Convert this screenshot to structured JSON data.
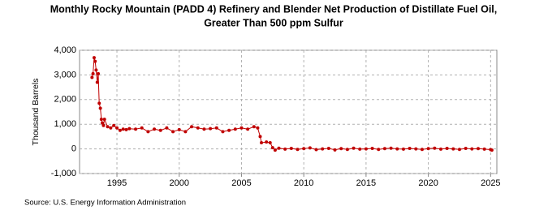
{
  "chart_data": {
    "type": "line",
    "title": [
      "Monthly Rocky Mountain (PADD 4) Refinery and Blender Net Production of Distillate Fuel Oil,",
      "Greater Than 500 ppm Sulfur"
    ],
    "ylabel": "Thousand Barrels",
    "source": "Source: U.S. Energy Information Administration",
    "x": [
      1993.0,
      1993.08,
      1993.17,
      1993.25,
      1993.33,
      1993.42,
      1993.5,
      1993.58,
      1993.67,
      1993.75,
      1993.83,
      1993.92,
      1994.0,
      1994.25,
      1994.5,
      1994.75,
      1995.0,
      1995.25,
      1995.5,
      1995.75,
      1996.0,
      1996.5,
      1997.0,
      1997.5,
      1998.0,
      1998.5,
      1999.0,
      1999.5,
      2000.0,
      2000.5,
      2001.0,
      2001.5,
      2002.0,
      2002.5,
      2003.0,
      2003.5,
      2004.0,
      2004.5,
      2005.0,
      2005.5,
      2006.0,
      2006.3,
      2006.5,
      2006.6,
      2007.0,
      2007.3,
      2007.5,
      2007.7,
      2008.0,
      2008.5,
      2009.0,
      2009.5,
      2010.0,
      2010.5,
      2011.0,
      2011.5,
      2012.0,
      2012.5,
      2013.0,
      2013.5,
      2014.0,
      2014.5,
      2015.0,
      2015.5,
      2016.0,
      2016.5,
      2017.0,
      2017.5,
      2018.0,
      2018.5,
      2019.0,
      2019.5,
      2020.0,
      2020.5,
      2021.0,
      2021.5,
      2022.0,
      2022.5,
      2023.0,
      2023.5,
      2024.0,
      2024.5,
      2025.0,
      2025.1
    ],
    "series": [
      {
        "name": "Net Production",
        "color": "#c00000",
        "values": [
          2900,
          3050,
          3700,
          3550,
          3200,
          2700,
          3050,
          1850,
          1650,
          1200,
          1050,
          950,
          1200,
          900,
          850,
          950,
          850,
          750,
          800,
          780,
          820,
          800,
          850,
          700,
          800,
          750,
          850,
          700,
          780,
          700,
          900,
          850,
          800,
          820,
          850,
          700,
          750,
          800,
          850,
          800,
          900,
          850,
          500,
          250,
          280,
          250,
          50,
          -50,
          30,
          -10,
          20,
          -20,
          10,
          40,
          -30,
          0,
          20,
          -40,
          10,
          -20,
          30,
          -10,
          0,
          20,
          -20,
          10,
          30,
          0,
          -10,
          20,
          0,
          -20,
          10,
          30,
          -10,
          20,
          0,
          -20,
          20,
          0,
          10,
          -10,
          -30,
          -50
        ]
      }
    ],
    "xlim": [
      1992,
      2025.5
    ],
    "xticks": [
      1995,
      2000,
      2005,
      2010,
      2015,
      2020,
      2025
    ],
    "ylim": [
      -1000,
      4000
    ],
    "yticks": [
      {
        "value": -1000,
        "label": "-1,000"
      },
      0,
      {
        "value": 1000,
        "label": "1,000"
      },
      {
        "value": 2000,
        "label": "2,000"
      },
      {
        "value": 3000,
        "label": "3,000"
      },
      {
        "value": 4000,
        "label": "4,000"
      }
    ],
    "grid": true
  }
}
